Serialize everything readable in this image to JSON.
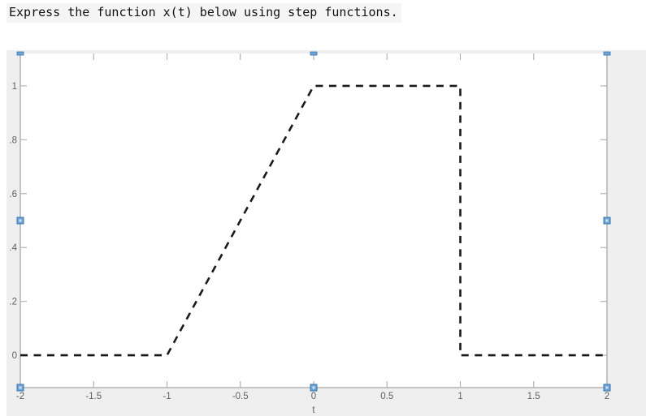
{
  "question": {
    "text": "Express the function x(t) below using step functions."
  },
  "chart_data": {
    "type": "line",
    "title": "",
    "xlabel": "t",
    "ylabel": "",
    "xlim": [
      -2,
      2
    ],
    "ylim": [
      -0.12,
      1.12
    ],
    "xtick_values": [
      -2,
      -1.5,
      -1,
      -0.5,
      0,
      0.5,
      1,
      1.5,
      2
    ],
    "xtick_labels": [
      "-2",
      "-1.5",
      "-1",
      "-0.5",
      "0",
      "0.5",
      "1",
      "1.5",
      "2"
    ],
    "ytick_values": [
      0,
      0.2,
      0.4,
      0.6,
      0.8,
      1
    ],
    "ytick_labels": [
      "0",
      ".2",
      ".4",
      ".6",
      ".8",
      "1"
    ],
    "grid": false,
    "legend": null,
    "series": [
      {
        "name": "x(t)",
        "style": "dashed",
        "color": "#1a1a1a",
        "points": [
          [
            -2,
            0
          ],
          [
            -1,
            0
          ],
          [
            0,
            1
          ],
          [
            1,
            1
          ],
          [
            1,
            0
          ],
          [
            2,
            0
          ]
        ]
      }
    ]
  },
  "figure": {
    "background": "#efefef",
    "plot_background": "#ffffff",
    "axis_color": "#b3b3b3",
    "tick_label_color": "#616161",
    "selected": true,
    "handle_border_color": "#2e75b6",
    "handle_fill_color": "#71a5d4",
    "handle_center_color": "#cfe1f2"
  }
}
